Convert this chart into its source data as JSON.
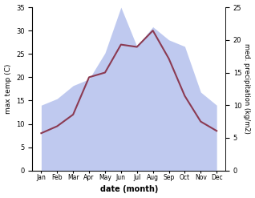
{
  "months": [
    "Jan",
    "Feb",
    "Mar",
    "Apr",
    "May",
    "Jun",
    "Jul",
    "Aug",
    "Sep",
    "Oct",
    "Nov",
    "Dec"
  ],
  "temperature": [
    8,
    9.5,
    12,
    20,
    21,
    27,
    26.5,
    30,
    24,
    16,
    10.5,
    8.5
  ],
  "precipitation_right": [
    10,
    11,
    13,
    14,
    18,
    25,
    19,
    22,
    20,
    19,
    12,
    10
  ],
  "temp_color": "#8B3A52",
  "precip_color": "#b8c4ee",
  "title": "",
  "xlabel": "date (month)",
  "ylabel_left": "max temp (C)",
  "ylabel_right": "med. precipitation (kg/m2)",
  "ylim_left": [
    0,
    35
  ],
  "ylim_right": [
    0,
    25
  ],
  "yticks_left": [
    0,
    5,
    10,
    15,
    20,
    25,
    30,
    35
  ],
  "yticks_right": [
    0,
    5,
    10,
    15,
    20,
    25
  ],
  "bg_color": "#ffffff"
}
